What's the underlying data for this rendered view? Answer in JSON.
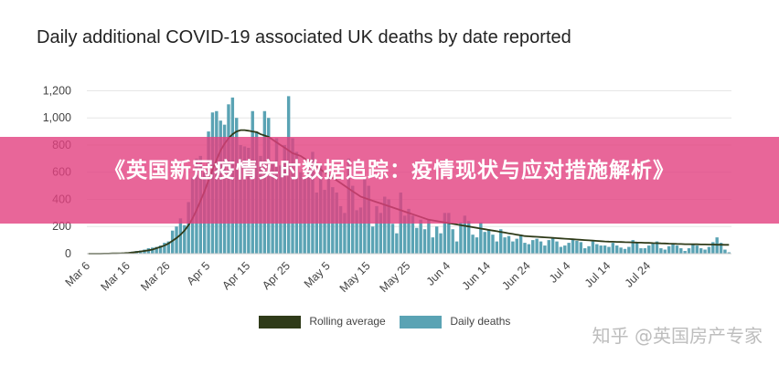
{
  "banner": {
    "text": "《英国新冠疫情实时数据追踪：疫情现状与应对措施解析》"
  },
  "watermark": {
    "text": "知乎 @英国房产专家"
  },
  "colors": {
    "bar": "#5aa3b4",
    "line": "#2f3b19",
    "banner": "#e2407f"
  },
  "chart_data": {
    "type": "bar",
    "title": "Daily additional COVID-19 associated UK deaths by date reported",
    "xlabel": "",
    "ylabel": "",
    "ylim": [
      0,
      1250
    ],
    "yticks": [
      0,
      200,
      400,
      600,
      800,
      "1,000",
      "1,200"
    ],
    "yticks_values": [
      0,
      200,
      400,
      600,
      800,
      1000,
      1200
    ],
    "xticks": [
      "Mar 6",
      "Mar 16",
      "Mar 26",
      "Apr 5",
      "Apr 15",
      "Apr 25",
      "May 5",
      "May 15",
      "May 25",
      "Jun 4",
      "Jun 14",
      "Jun 24",
      "Jul 4",
      "Jul 14",
      "Jul 24"
    ],
    "grid": true,
    "legend_position": "bottom",
    "series": [
      {
        "name": "Daily deaths",
        "kind": "bar",
        "values": [
          0,
          0,
          0,
          0,
          1,
          1,
          2,
          2,
          3,
          5,
          10,
          15,
          20,
          23,
          30,
          40,
          45,
          50,
          60,
          80,
          90,
          170,
          200,
          260,
          210,
          380,
          560,
          700,
          720,
          600,
          900,
          1040,
          1050,
          980,
          950,
          1100,
          1150,
          1000,
          800,
          790,
          780,
          1050,
          900,
          720,
          1050,
          1000,
          680,
          850,
          650,
          800,
          1160,
          850,
          750,
          600,
          550,
          700,
          750,
          450,
          650,
          470,
          580,
          490,
          450,
          350,
          300,
          700,
          500,
          320,
          340,
          550,
          500,
          200,
          350,
          300,
          420,
          400,
          220,
          150,
          450,
          280,
          330,
          280,
          190,
          250,
          180,
          250,
          120,
          200,
          150,
          300,
          300,
          180,
          90,
          230,
          280,
          240,
          140,
          120,
          230,
          160,
          180,
          140,
          90,
          180,
          120,
          130,
          90,
          110,
          140,
          80,
          70,
          100,
          110,
          90,
          60,
          100,
          120,
          90,
          50,
          60,
          80,
          110,
          95,
          85,
          40,
          55,
          90,
          70,
          60,
          60,
          50,
          80,
          60,
          45,
          35,
          50,
          100,
          80,
          40,
          40,
          60,
          80,
          90,
          40,
          30,
          55,
          75,
          60,
          40,
          20,
          40,
          70,
          60,
          40,
          30,
          50,
          85,
          120,
          80,
          30,
          10
        ]
      },
      {
        "name": "Rolling average",
        "kind": "line",
        "values": [
          0,
          0,
          0,
          0,
          1,
          1,
          2,
          2,
          3,
          4,
          6,
          9,
          12,
          16,
          20,
          25,
          30,
          40,
          50,
          60,
          75,
          95,
          115,
          140,
          170,
          210,
          260,
          320,
          390,
          460,
          540,
          620,
          690,
          760,
          810,
          850,
          880,
          900,
          910,
          910,
          905,
          900,
          895,
          880,
          870,
          860,
          840,
          820,
          800,
          780,
          760,
          740,
          730,
          720,
          700,
          680,
          660,
          640,
          620,
          600,
          580,
          560,
          540,
          520,
          500,
          480,
          460,
          440,
          420,
          410,
          400,
          390,
          380,
          370,
          360,
          350,
          340,
          330,
          320,
          310,
          300,
          290,
          280,
          270,
          260,
          250,
          245,
          240,
          235,
          230,
          225,
          220,
          215,
          210,
          205,
          200,
          195,
          190,
          185,
          180,
          175,
          170,
          165,
          160,
          155,
          150,
          145,
          140,
          135,
          130,
          128,
          126,
          124,
          122,
          120,
          118,
          116,
          114,
          112,
          110,
          108,
          106,
          104,
          102,
          100,
          98,
          96,
          94,
          92,
          90,
          89,
          88,
          87,
          86,
          85,
          84,
          83,
          82,
          81,
          80,
          79,
          78,
          77,
          76,
          75,
          74,
          73,
          72,
          71,
          70,
          70,
          69,
          69,
          68,
          68,
          67,
          67,
          66,
          66,
          65,
          65
        ]
      }
    ]
  }
}
